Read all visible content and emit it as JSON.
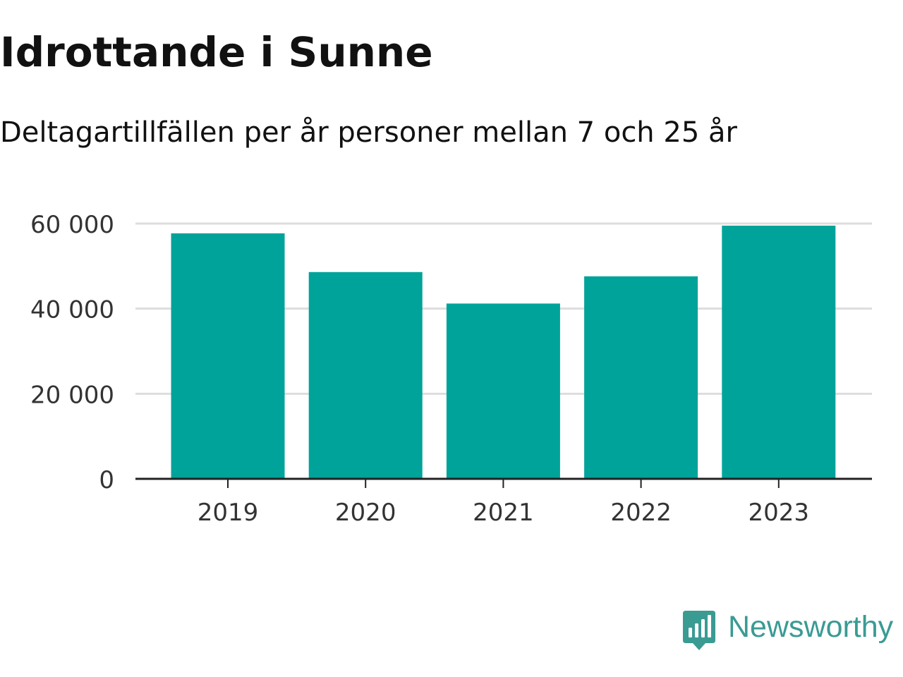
{
  "title": "Idrottande i Sunne",
  "subtitle": "Deltagartillfällen per år personer mellan 7 och 25 år",
  "brand": {
    "name": "Newsworthy",
    "icon": "newsworthy-logo-icon",
    "color": "#3a9b93"
  },
  "colors": {
    "bar": "#00a39a",
    "grid": "#dddddd",
    "axis": "#222222",
    "tick_text": "#333333"
  },
  "chart_data": {
    "type": "bar",
    "title": "Idrottande i Sunne",
    "subtitle": "Deltagartillfällen per år personer mellan 7 och 25 år",
    "categories": [
      "2019",
      "2020",
      "2021",
      "2022",
      "2023"
    ],
    "values": [
      57700,
      48600,
      41200,
      47600,
      59500
    ],
    "ylim": [
      0,
      60000
    ],
    "yticks": [
      0,
      20000,
      40000,
      60000
    ],
    "ytick_labels": [
      "0",
      "20 000",
      "40 000",
      "60 000"
    ],
    "xlabel": "",
    "ylabel": "",
    "grid": true,
    "legend": "none"
  }
}
